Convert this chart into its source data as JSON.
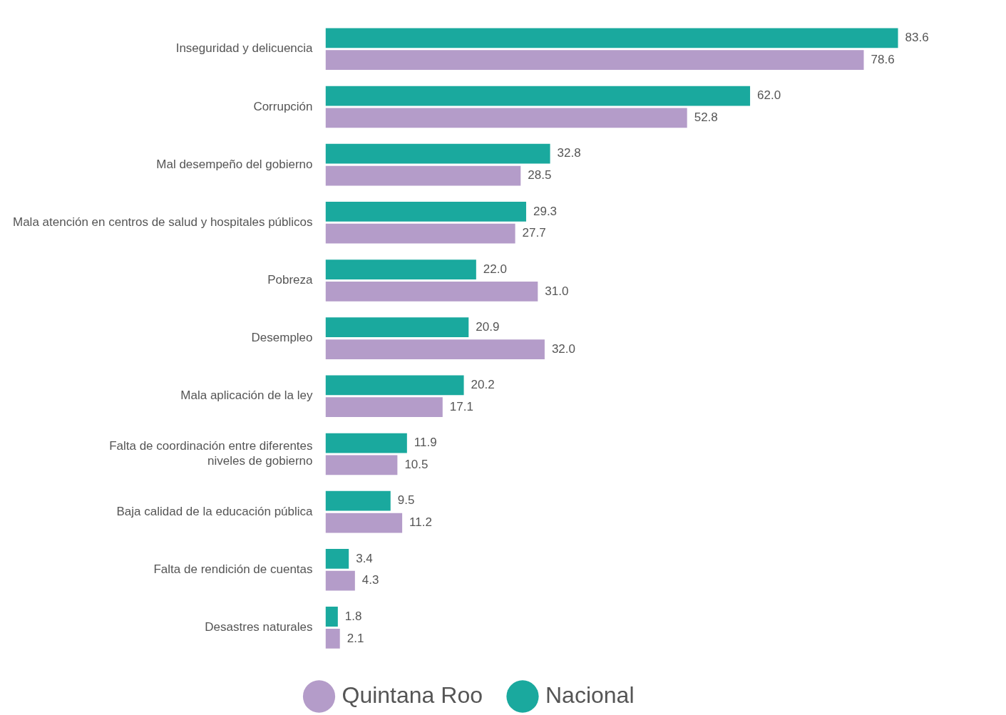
{
  "chart_data": {
    "type": "bar",
    "orientation": "horizontal",
    "legend": "bottom",
    "categories": [
      "Inseguridad y delicuencia",
      "Corrupción",
      "Mal desempeño del gobierno",
      "Mala atención en centros de salud y hospitales públicos",
      "Pobreza",
      "Desempleo",
      "Mala aplicación de la ley",
      "Falta de coordinación entre diferentes\nniveles de gobierno",
      "Baja calidad de la educación pública",
      "Falta de rendición de cuentas",
      "Desastres naturales"
    ],
    "series": [
      {
        "name": "Nacional",
        "color": "#1aa99e",
        "values": [
          83.6,
          62.0,
          32.8,
          29.3,
          22.0,
          20.9,
          20.2,
          11.9,
          9.5,
          3.4,
          1.8
        ],
        "value_labels": [
          "83.6",
          "62.0",
          "32.8",
          "29.3",
          "22.0",
          "20.9",
          "20.2",
          "11.9",
          "9.5",
          "3.4",
          "1.8"
        ]
      },
      {
        "name": "Quintana Roo",
        "color": "#b49cc9",
        "values": [
          78.6,
          52.8,
          28.5,
          27.7,
          31.0,
          32.0,
          17.1,
          10.5,
          11.2,
          4.3,
          2.1
        ],
        "value_labels": [
          "78.6",
          "52.8",
          "28.5",
          "27.7",
          "31.0",
          "32.0",
          "17.1",
          "10.5",
          "11.2",
          "4.3",
          "2.1"
        ]
      }
    ]
  }
}
